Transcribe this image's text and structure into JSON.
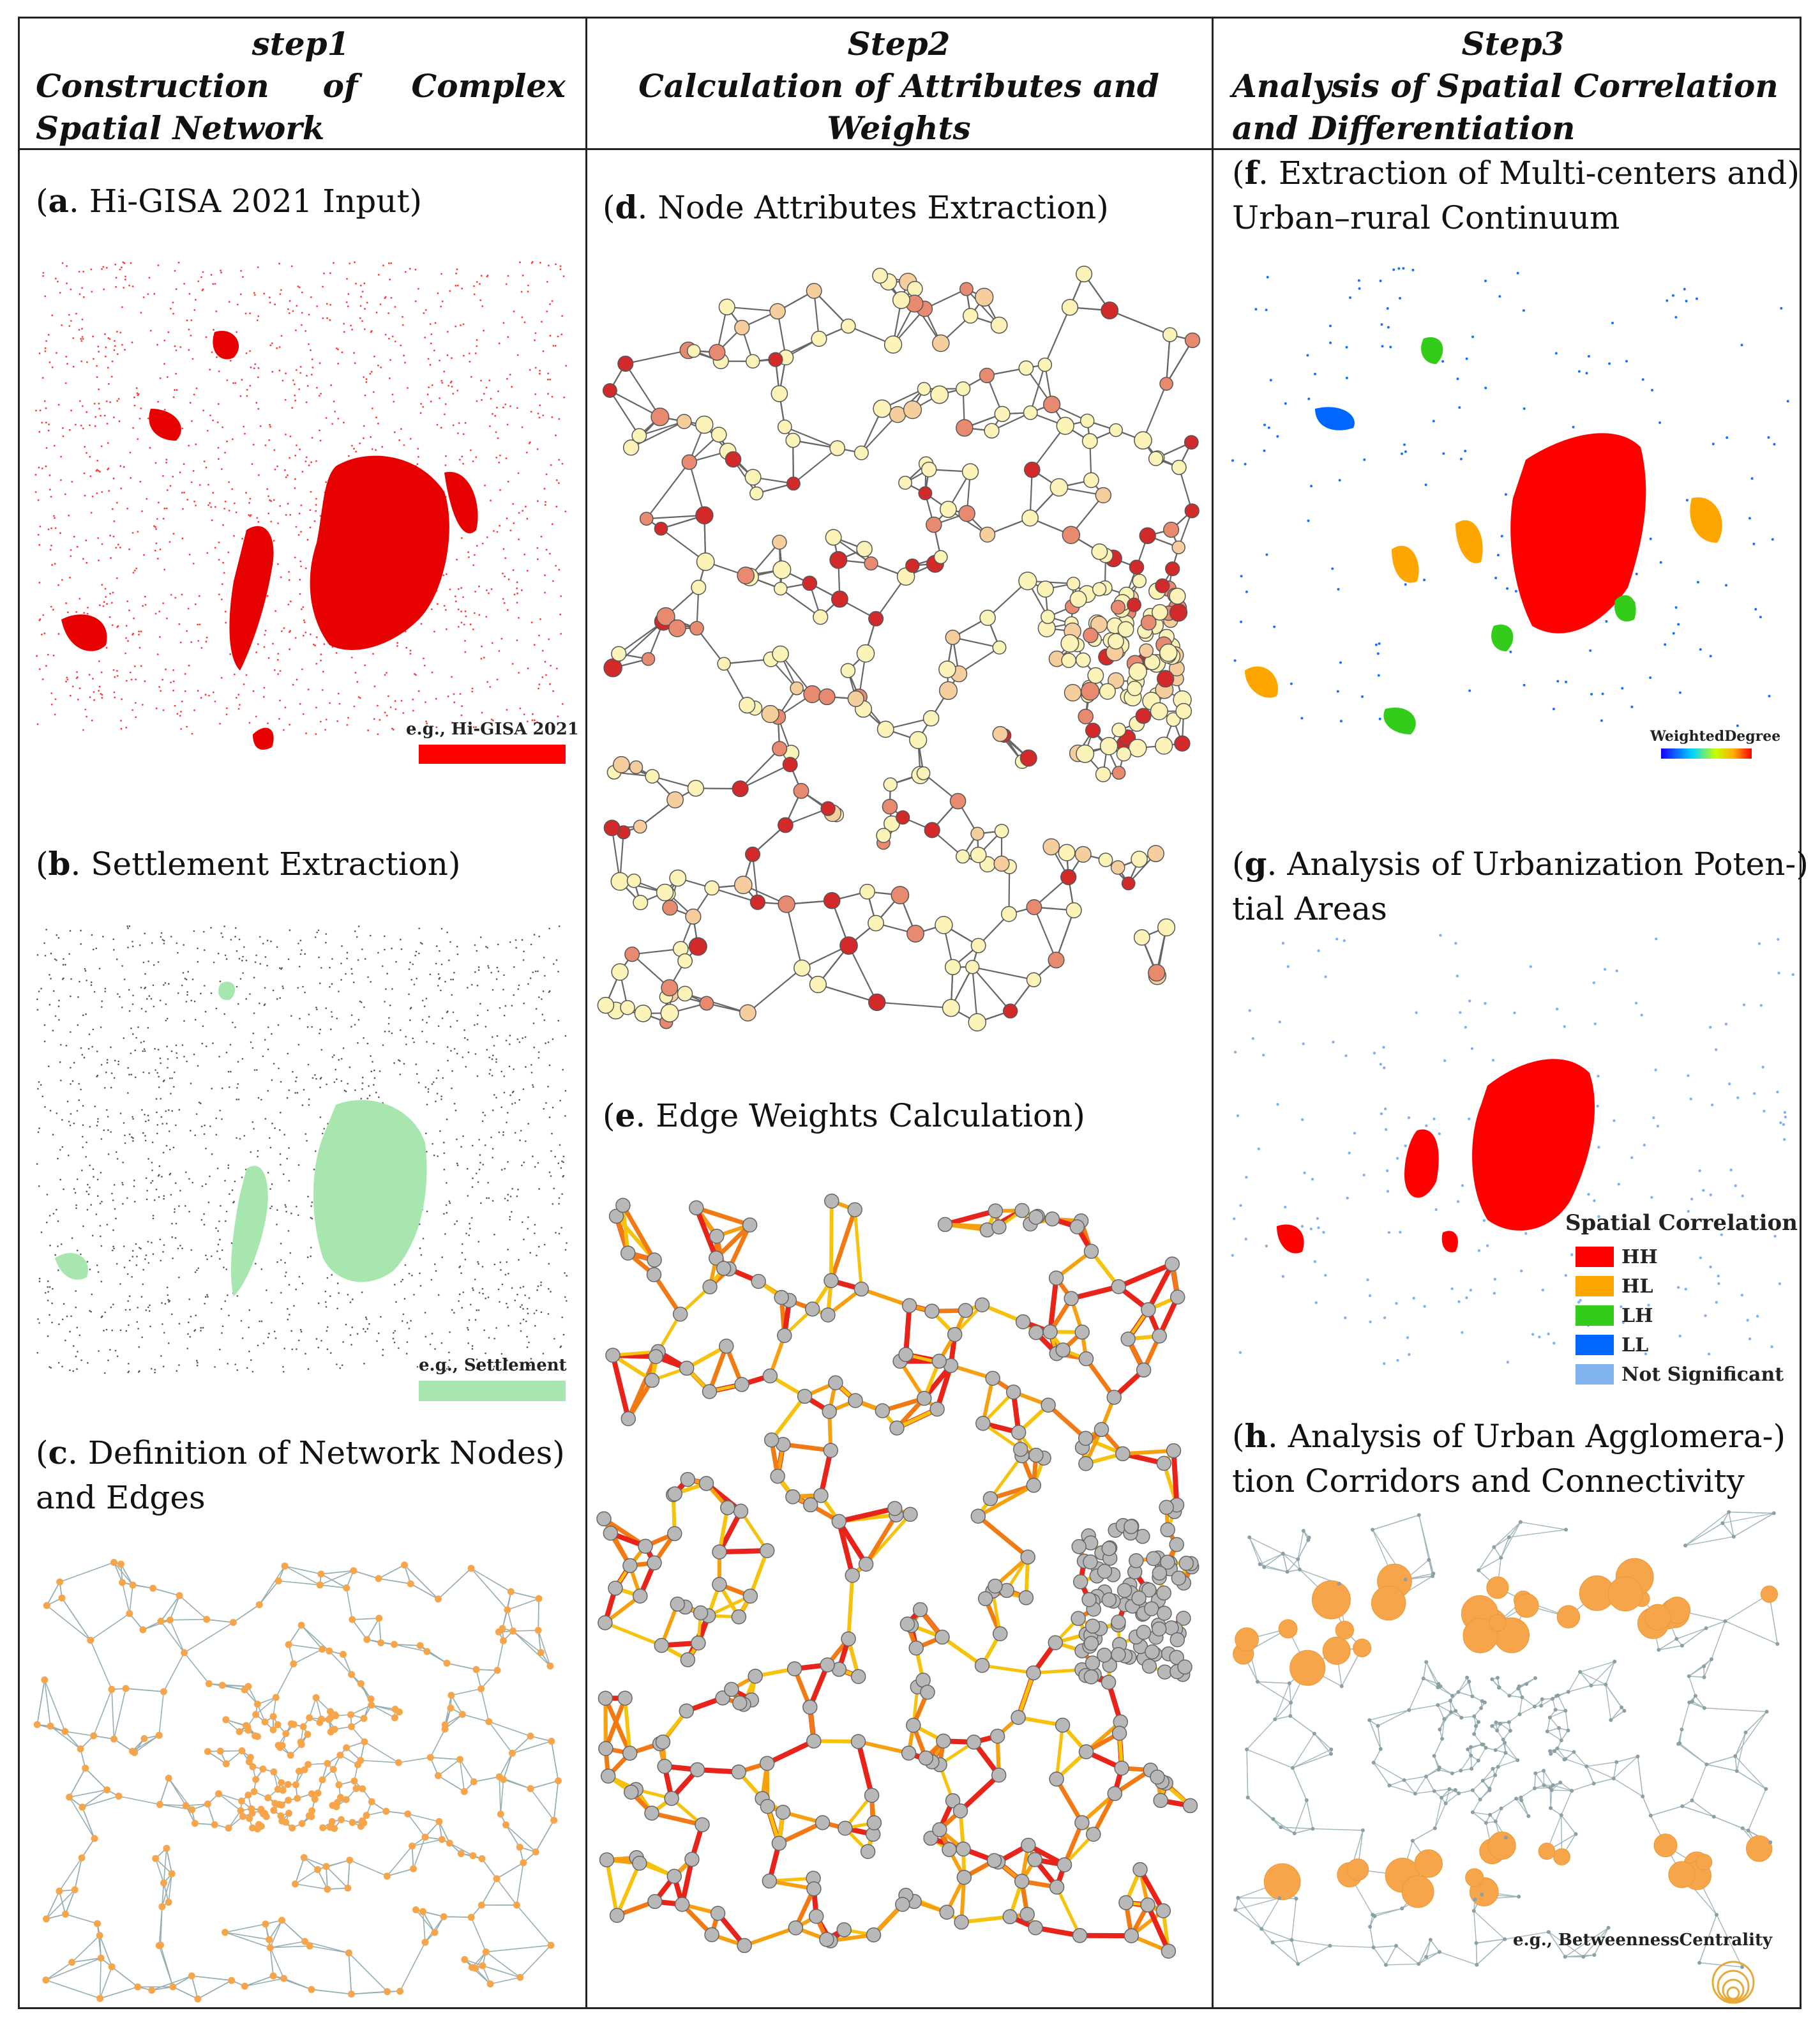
{
  "columns": [
    {
      "step": "step1",
      "title": "Construction of Complex Spatial Network"
    },
    {
      "step": "Step2",
      "title": "Calculation of Attributes and Weights"
    },
    {
      "step": "Step3",
      "title": "Analysis of Spatial Correlation and Differentiation"
    }
  ],
  "panels": {
    "a": {
      "letter": "a",
      "caption": ". Hi-GISA 2021 Input",
      "legend": "e.g., Hi-GISA 2021",
      "legend_color": "#ff0000"
    },
    "b": {
      "letter": "b",
      "caption": ". Settlement Extraction",
      "legend": "e.g., Settlement",
      "legend_color": "#a8e6b0"
    },
    "c": {
      "letter": "c",
      "caption_line1": ". Definition of Network Nodes",
      "caption_line2": "and Edges"
    },
    "d": {
      "letter": "d",
      "caption": ". Node Attributes Extraction"
    },
    "e": {
      "letter": "e",
      "caption": ". Edge Weights Calculation"
    },
    "f": {
      "letter": "f",
      "caption_line1": ". Extraction of Multi-centers and",
      "caption_line2": "Urban–rural Continuum",
      "legend": "WeightedDegree"
    },
    "g": {
      "letter": "g",
      "caption_line1": ". Analysis of Urbanization Poten-",
      "caption_line2": "tial Areas",
      "legend_title": "Spatial Correlation",
      "legend_items": [
        {
          "label": "HH",
          "color": "#ff0000"
        },
        {
          "label": "HL",
          "color": "#ffa500"
        },
        {
          "label": "LH",
          "color": "#33cc1a"
        },
        {
          "label": "LL",
          "color": "#0066ff"
        },
        {
          "label": "Not Significant",
          "color": "#7fb2ee"
        }
      ]
    },
    "h": {
      "letter": "h",
      "caption_line1": ". Analysis of Urban Agglomera-",
      "caption_line2": "tion Corridors and Connectivity",
      "legend": "e.g., BetweennessCentrality"
    }
  },
  "colors": {
    "node_orange": "#f7a54a",
    "edge_gray": "#7a9aa0",
    "node_gray": "#b8b8b8",
    "hh_red": "#ff0000"
  }
}
